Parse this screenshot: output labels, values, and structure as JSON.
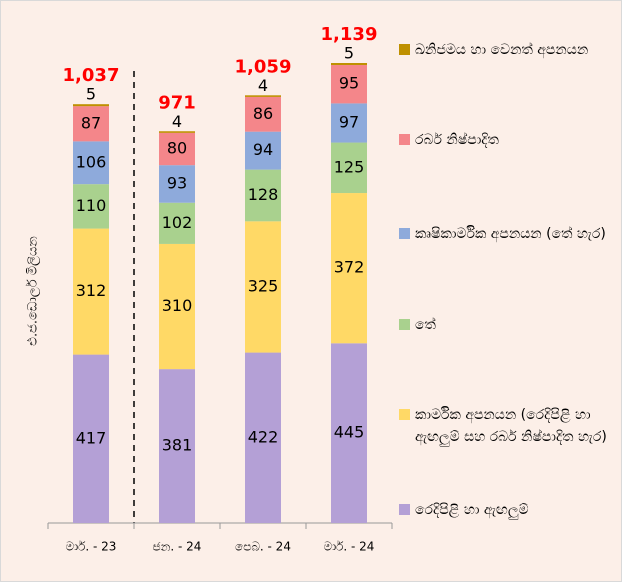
{
  "chart_data": {
    "type": "stacked_bar",
    "y_label": "එ.ජ.ඩොලර් මිලියන",
    "categories": [
      "මාර්. - 23",
      "ජන. - 24",
      "පෙබ. - 24",
      "මාර්. - 24"
    ],
    "series": [
      {
        "name": "රෙදිපිළි හා ඇඟලුම්",
        "color": "#b4a0d6",
        "values": [
          417,
          381,
          422,
          445
        ]
      },
      {
        "name": "කාර්මික අපනයන (රෙදිපිළි හා ඇඟලුම් සහ රබර් නිෂ්පාදිත හැර)",
        "color": "#ffd966",
        "values": [
          312,
          310,
          325,
          372
        ]
      },
      {
        "name": "තේ",
        "color": "#a9d18e",
        "values": [
          110,
          102,
          128,
          125
        ]
      },
      {
        "name": "කෘෂිකාර්මික අපනයන (තේ හැර)",
        "color": "#8eaadb",
        "values": [
          106,
          93,
          94,
          97
        ]
      },
      {
        "name": "රබර් නිෂ්පාදිත",
        "color": "#f4868a",
        "values": [
          87,
          80,
          86,
          95
        ]
      },
      {
        "name": "ඛනිජමය හා වෙනත් අපනයන",
        "color": "#bf9000",
        "values": [
          5,
          4,
          4,
          5
        ]
      }
    ],
    "totals": [
      1037,
      971,
      1059,
      1139
    ],
    "total_labels": [
      "1,037",
      "971",
      "1,059",
      "1,139"
    ]
  }
}
